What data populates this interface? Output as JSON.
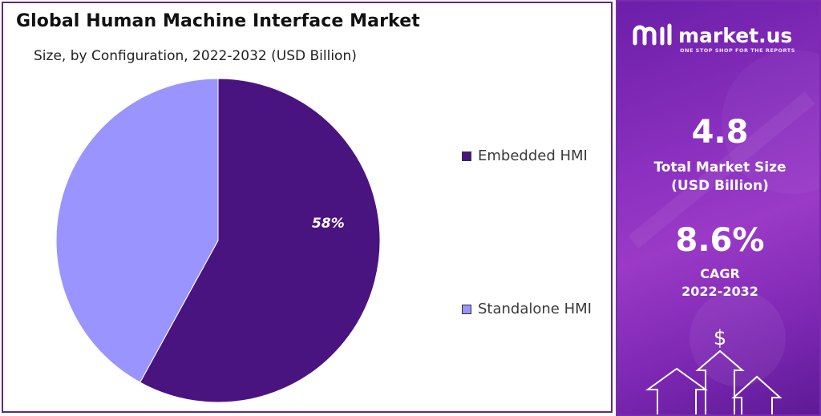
{
  "title": "Global Human Machine Interface Market",
  "subtitle": "Size, by Configuration, 2022-2032 (USD Billion)",
  "colors": {
    "embedded": "#4a1480",
    "standalone": "#9a94ff",
    "panel_border": "#5b2a86",
    "brand_purple": "#8a2fbf"
  },
  "chart_data": {
    "type": "pie",
    "categories": [
      "Embedded HMI",
      "Standalone HMI"
    ],
    "values": [
      58,
      42
    ],
    "data_labels": [
      "58%",
      ""
    ],
    "legend": "right"
  },
  "legend": {
    "items": [
      {
        "label": "Embedded HMI"
      },
      {
        "label": "Standalone HMI"
      }
    ]
  },
  "brand": {
    "name": "market.us",
    "tagline": "ONE STOP SHOP FOR THE REPORTS"
  },
  "stats": {
    "market_size_value": "4.8",
    "market_size_label_1": "Total Market Size",
    "market_size_label_2": "(USD Billion)",
    "cagr_value": "8.6%",
    "cagr_label_1": "CAGR",
    "cagr_label_2": "2022-2032"
  },
  "icons": [
    "logo-icon",
    "dollar-icon",
    "arrow-up-icon"
  ]
}
